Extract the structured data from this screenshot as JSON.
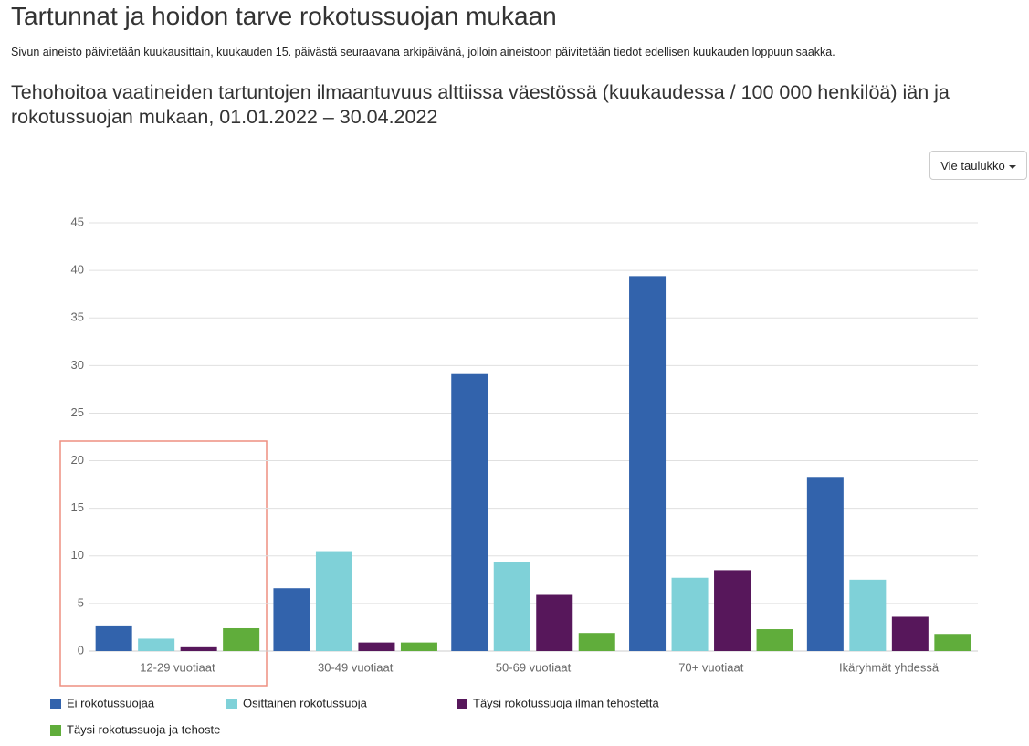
{
  "header": {
    "title": "Tartunnat ja hoidon tarve rokotussuojan mukaan",
    "note": "Sivun aineisto päivitetään kuukausittain, kuukauden 15. päivästä seuraavana arkipäivänä, jolloin aineistoon päivitetään tiedot edellisen kuukauden loppuun saakka.",
    "export_button": "Vie taulukko"
  },
  "chart_data": {
    "type": "bar",
    "title": "Tehohoitoa vaatineiden tartuntojen ilmaantuvuus alttiissa väestössä (kuukaudessa / 100 000 henkilöä) iän ja rokotussuojan mukaan, 01.01.2022 – 30.04.2022",
    "categories": [
      "12-29 vuotiaat",
      "30-49 vuotiaat",
      "50-69 vuotiaat",
      "70+ vuotiaat",
      "Ikäryhmät yhdessä"
    ],
    "series": [
      {
        "name": "Ei rokotussuojaa",
        "color": "#3263ac",
        "values": [
          2.6,
          6.6,
          29.1,
          39.4,
          18.3
        ]
      },
      {
        "name": "Osittainen rokotussuoja",
        "color": "#7fd1d8",
        "values": [
          1.3,
          10.5,
          9.4,
          7.7,
          7.5
        ]
      },
      {
        "name": "Täysi rokotussuoja ilman tehostetta",
        "color": "#57175b",
        "values": [
          0.4,
          0.9,
          5.9,
          8.5,
          3.6
        ]
      },
      {
        "name": "Täysi rokotussuoja ja tehoste",
        "color": "#60ad3b",
        "values": [
          2.4,
          0.9,
          1.9,
          2.3,
          1.8
        ]
      }
    ],
    "ylim": [
      0,
      45
    ],
    "yticks": [
      0,
      5,
      10,
      15,
      20,
      25,
      30,
      35,
      40,
      45
    ],
    "grid": true
  }
}
